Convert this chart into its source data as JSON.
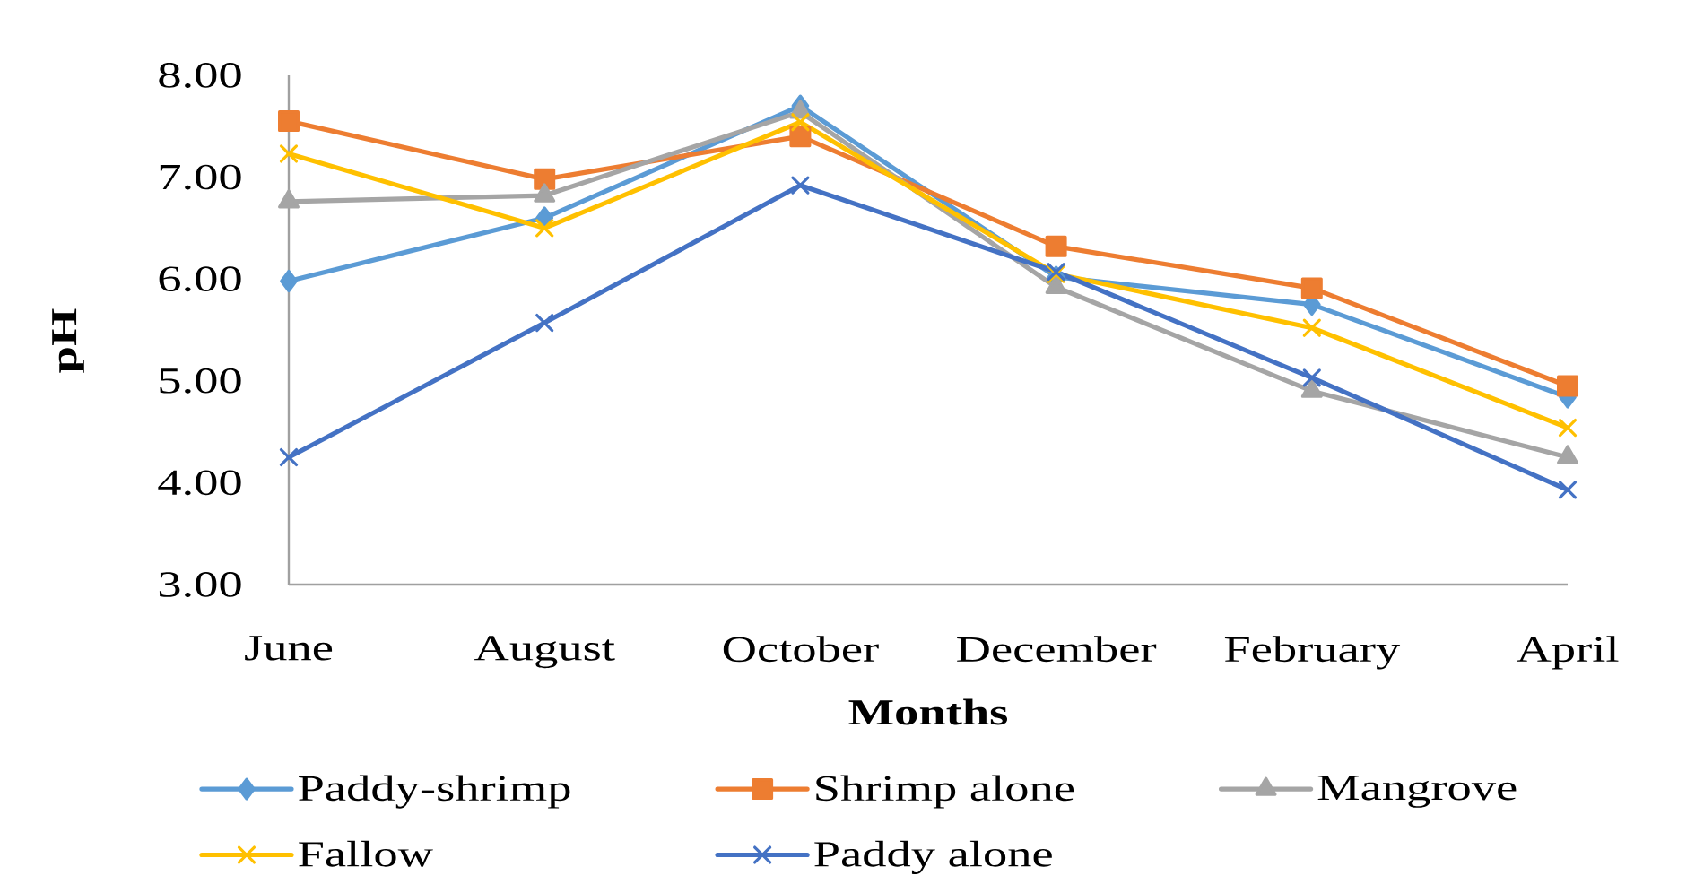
{
  "chart_data": {
    "type": "line",
    "xlabel": "Months",
    "ylabel": "pH",
    "categories": [
      "June",
      "August",
      "October",
      "December",
      "February",
      "April"
    ],
    "ylim": [
      3,
      8
    ],
    "yticks": [
      {
        "value": 3,
        "label": "3.00"
      },
      {
        "value": 4,
        "label": "4.00"
      },
      {
        "value": 5,
        "label": "5.00"
      },
      {
        "value": 6,
        "label": "6.00"
      },
      {
        "value": 7,
        "label": "7.00"
      },
      {
        "value": 8,
        "label": "8.00"
      }
    ],
    "legend": "bottom",
    "line_style": "solid",
    "series": [
      {
        "name": "Paddy-shrimp",
        "color": "#5b9bd5",
        "marker": "diamond",
        "values": [
          5.98,
          6.6,
          7.7,
          6.02,
          5.75,
          4.84
        ]
      },
      {
        "name": "Shrimp alone",
        "color": "#ed7d31",
        "marker": "square",
        "values": [
          7.55,
          6.98,
          7.4,
          6.32,
          5.91,
          4.95
        ]
      },
      {
        "name": "Mangrove",
        "color": "#a5a5a5",
        "marker": "triangle",
        "values": [
          6.76,
          6.82,
          7.64,
          5.92,
          4.9,
          4.25
        ]
      },
      {
        "name": "Fallow",
        "color": "#ffc000",
        "marker": "cross",
        "values": [
          7.23,
          6.5,
          7.54,
          6.05,
          5.52,
          4.54
        ]
      },
      {
        "name": "Paddy alone",
        "color": "#4472c4",
        "marker": "cross",
        "values": [
          4.25,
          5.57,
          6.92,
          6.07,
          5.03,
          3.93
        ]
      }
    ]
  }
}
